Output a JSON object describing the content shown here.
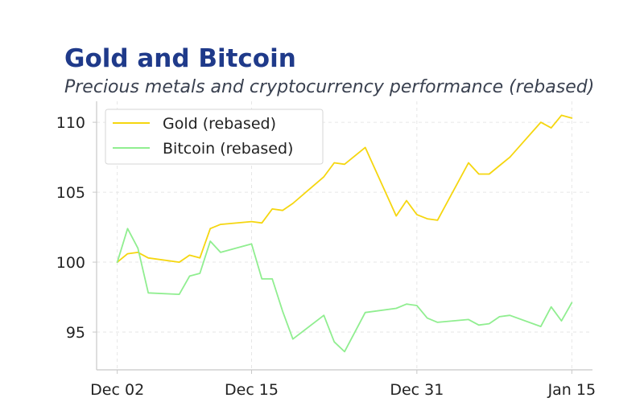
{
  "chart_data": {
    "type": "line",
    "title": "Gold and Bitcoin",
    "subtitle": "Precious metals and cryptocurrency performance (rebased)",
    "xlabel": "",
    "ylabel": "",
    "xlim": [
      "Nov 30",
      "Jan 17"
    ],
    "ylim": [
      92.3,
      111.5
    ],
    "x_ticks": [
      {
        "label": "Dec 02",
        "value": "Dec 02"
      },
      {
        "label": "Dec 15",
        "value": "Dec 15"
      },
      {
        "label": "Dec 31",
        "value": "Dec 31"
      },
      {
        "label": "Jan 15",
        "value": "Jan 15"
      }
    ],
    "y_ticks": [
      95,
      100,
      105,
      110
    ],
    "grid": true,
    "legend_position": "top-left",
    "x": [
      "Dec 02",
      "Dec 03",
      "Dec 04",
      "Dec 05",
      "Dec 08",
      "Dec 09",
      "Dec 10",
      "Dec 11",
      "Dec 12",
      "Dec 15",
      "Dec 16",
      "Dec 17",
      "Dec 18",
      "Dec 19",
      "Dec 22",
      "Dec 23",
      "Dec 24",
      "Dec 26",
      "Dec 29",
      "Dec 30",
      "Dec 31",
      "Jan 01",
      "Jan 02",
      "Jan 05",
      "Jan 06",
      "Jan 07",
      "Jan 08",
      "Jan 09",
      "Jan 12",
      "Jan 13",
      "Jan 14",
      "Jan 15"
    ],
    "series": [
      {
        "name": "Gold (rebased)",
        "color": "#f5d60f",
        "values": [
          100.0,
          100.6,
          100.7,
          100.3,
          100.0,
          100.5,
          100.3,
          102.4,
          102.7,
          102.9,
          102.8,
          103.8,
          103.7,
          104.2,
          106.1,
          107.1,
          107.0,
          108.2,
          103.3,
          104.4,
          103.4,
          103.1,
          103.0,
          107.1,
          106.3,
          106.3,
          106.9,
          107.5,
          110.0,
          109.6,
          110.5,
          110.3
        ]
      },
      {
        "name": "Bitcoin (rebased)",
        "color": "#90ee90",
        "values": [
          100.0,
          102.4,
          101.0,
          97.8,
          97.7,
          99.0,
          99.2,
          101.5,
          100.7,
          101.3,
          98.8,
          98.8,
          96.5,
          94.5,
          96.2,
          94.3,
          93.6,
          96.4,
          96.7,
          97.0,
          96.9,
          96.0,
          95.7,
          95.9,
          95.5,
          95.6,
          96.1,
          96.2,
          95.4,
          96.8,
          95.8,
          97.1
        ]
      }
    ]
  }
}
